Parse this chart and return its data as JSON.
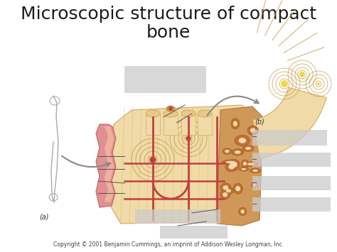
{
  "title_line1": "Microscopic structure of compact",
  "title_line2": "bone",
  "title_fontsize": 18,
  "title_color": "#1a1a1a",
  "bg_color": "#ffffff",
  "label_a": "(a)",
  "label_b": "(b)",
  "copyright": "Copyright © 2001 Benjamin Cummings, an imprint of Addison Wesley Longman, Inc.",
  "copyright_fontsize": 5.5,
  "label_fontsize": 7,
  "bone_tan_light": "#f0dba8",
  "bone_tan": "#e8c88a",
  "bone_tan_dark": "#d4aa60",
  "bone_orange": "#c8903c",
  "bone_red": "#c04040",
  "bone_pink": "#e09090",
  "bone_pink_light": "#f0b0a0",
  "spongy_orange": "#c07838",
  "spongy_dark": "#a06028",
  "gray_label": "#cccccc",
  "gray_arrow": "#888888",
  "line_color": "#444444",
  "fig_w": 4.74,
  "fig_h": 3.55,
  "dpi": 100
}
